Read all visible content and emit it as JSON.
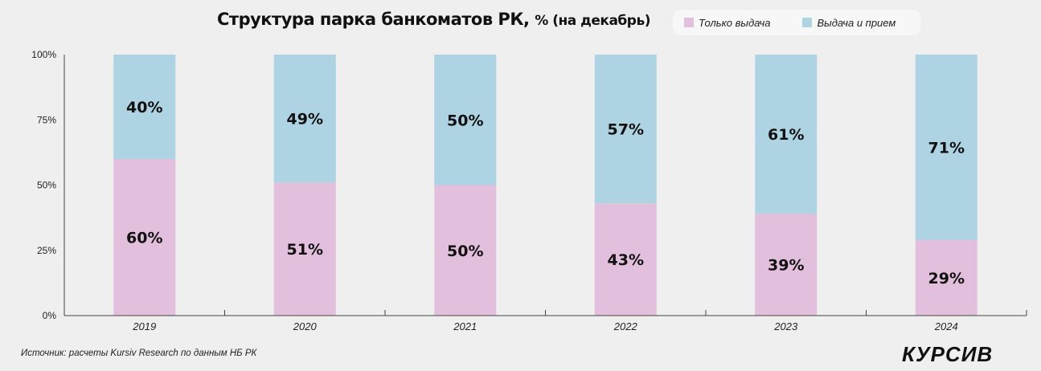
{
  "chart_data": {
    "type": "bar",
    "stacked": true,
    "title": "Структура парка банкоматов РК,",
    "subtitle": "% (на декабрь)",
    "categories": [
      "2019",
      "2020",
      "2021",
      "2022",
      "2023",
      "2024"
    ],
    "series": [
      {
        "name": "Только выдача",
        "values": [
          60,
          51,
          50,
          43,
          39,
          29
        ],
        "color": "#e2bfdc"
      },
      {
        "name": "Выдача и прием",
        "values": [
          40,
          49,
          50,
          57,
          61,
          71
        ],
        "color": "#aed3e3"
      }
    ],
    "ylim": [
      0,
      100
    ],
    "yticks": [
      "0%",
      "25%",
      "50%",
      "75%",
      "100%"
    ],
    "grid": false,
    "legend_position": "top-right",
    "source": "Источник: расчеты Kursiv Research по данным НБ РК",
    "logo": "КУРСИВ"
  }
}
